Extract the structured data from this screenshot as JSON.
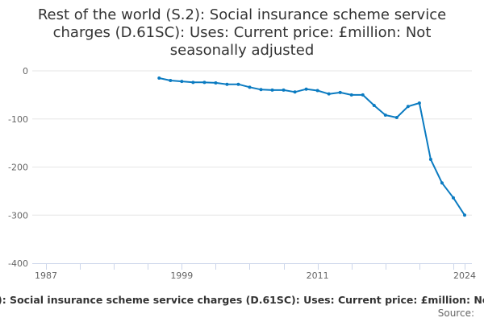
{
  "chart_data": {
    "type": "line",
    "title": "Rest of the world (S.2): Social insurance scheme service charges (D.61SC): Uses: Current price: £million: Not seasonally adjusted",
    "x": [
      1997,
      1998,
      1999,
      2000,
      2001,
      2002,
      2003,
      2004,
      2005,
      2006,
      2007,
      2008,
      2009,
      2010,
      2011,
      2012,
      2013,
      2014,
      2015,
      2016,
      2017,
      2018,
      2019,
      2020,
      2021,
      2022,
      2023,
      2024
    ],
    "series": [
      {
        "name": "Rest of the world (S.2): Social insurance scheme service charges (D.61SC): Uses: Current price: £million: Not seasonally adjusted",
        "values": [
          -15,
          -20,
          -22,
          -24,
          -24,
          -25,
          -28,
          -28,
          -34,
          -39,
          -40,
          -40,
          -44,
          -38,
          -41,
          -48,
          -45,
          -50,
          -50,
          -72,
          -92,
          -97,
          -74,
          -67,
          -184,
          -233,
          -264,
          -300
        ]
      }
    ],
    "xlim": [
      1987,
      2024
    ],
    "ylim": [
      -400,
      0
    ],
    "x_tick_labels": [
      "1987",
      "1999",
      "2011",
      "2024"
    ],
    "y_tick_labels": [
      "0",
      "-100",
      "-200",
      "-300",
      "-400"
    ],
    "grid": true,
    "legend": "bottom",
    "line_color": "#0b7bc1"
  },
  "source_label": "Source:"
}
